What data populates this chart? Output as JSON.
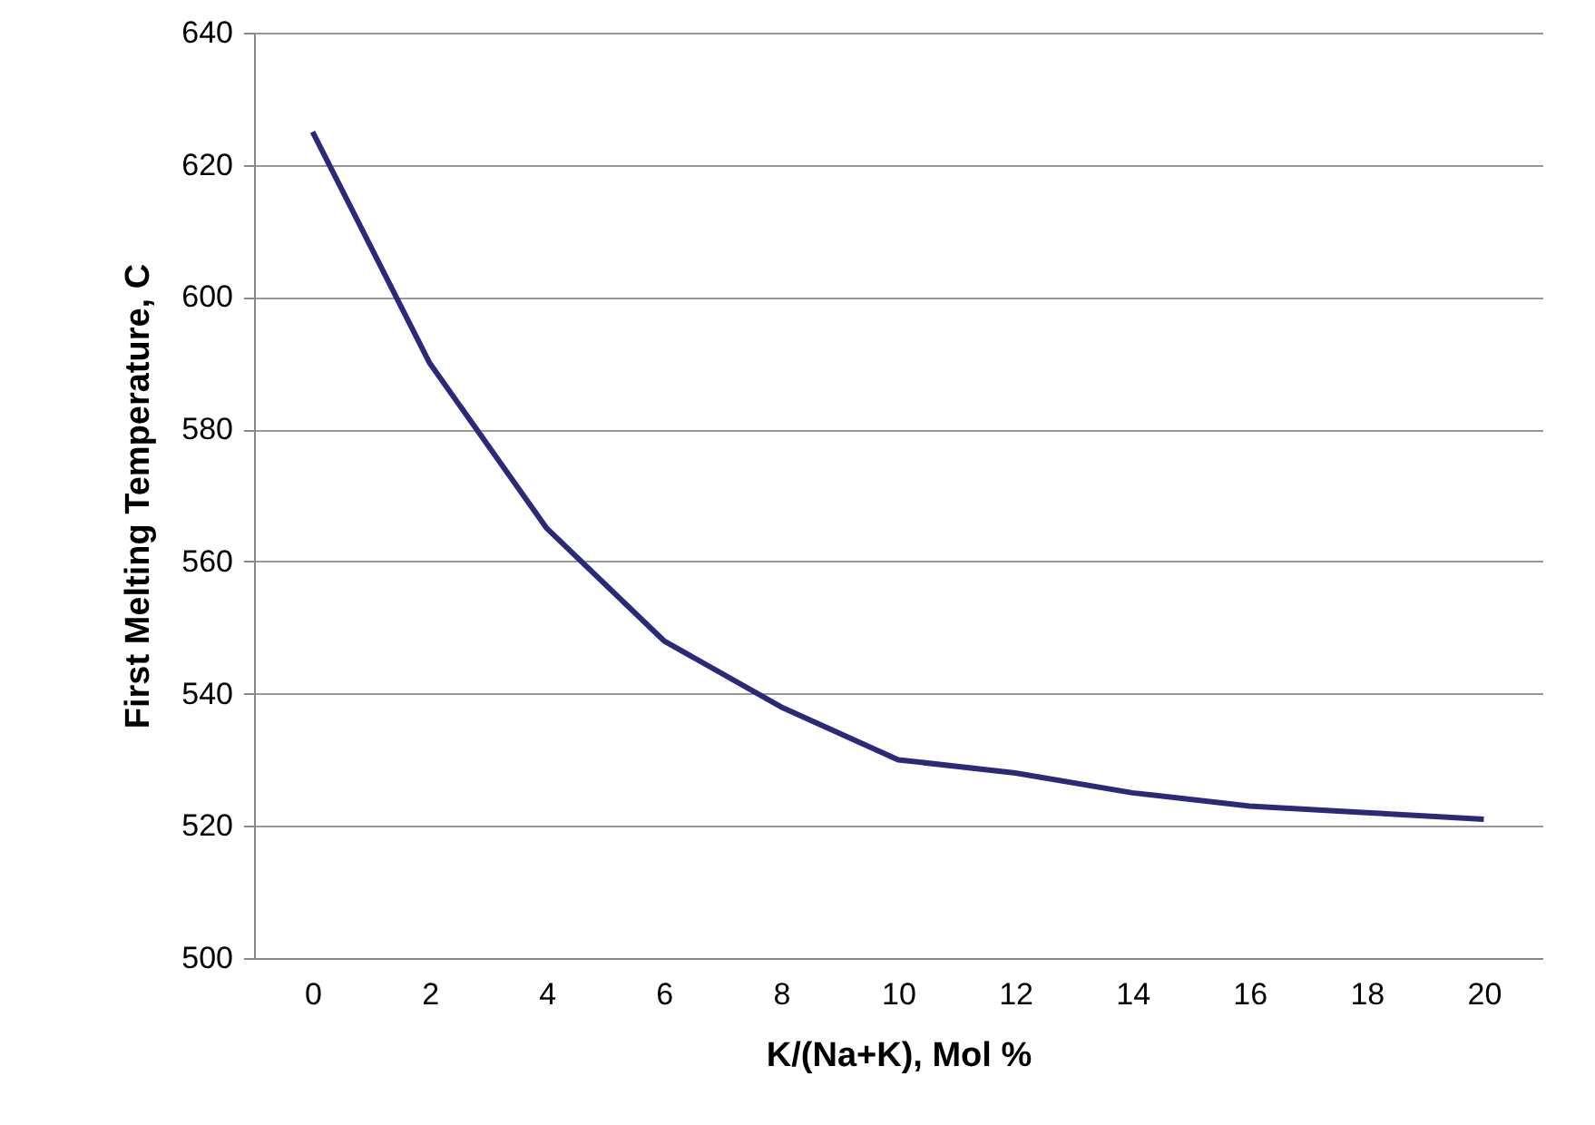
{
  "chart_data": {
    "type": "line",
    "xlabel": "K/(Na+K), Mol %",
    "ylabel": "First Melting Temperature, C",
    "categories": [
      "0",
      "2",
      "4",
      "6",
      "8",
      "10",
      "12",
      "14",
      "16",
      "18",
      "20"
    ],
    "series": [
      {
        "color": "#2b2a78",
        "values": [
          625,
          590,
          565,
          548,
          538,
          530,
          528,
          525,
          523,
          522,
          521
        ]
      }
    ],
    "ylim": [
      500,
      640
    ],
    "yticks": [
      500,
      520,
      540,
      560,
      580,
      600,
      620,
      640
    ],
    "grid": "y",
    "marker": "none",
    "line_style": "solid"
  }
}
